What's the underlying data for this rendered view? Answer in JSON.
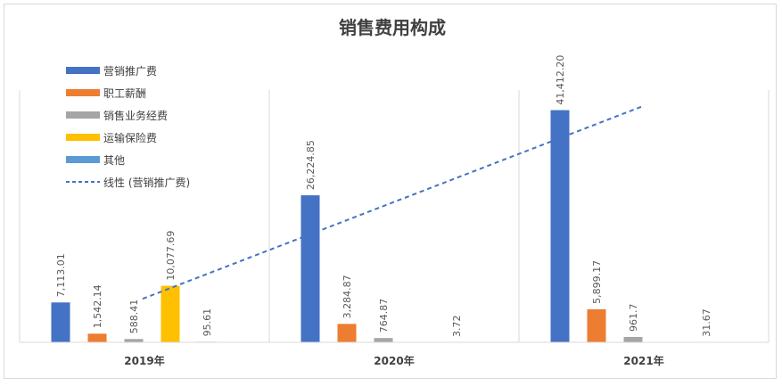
{
  "chart_data": {
    "type": "bar",
    "title": "销售费用构成",
    "categories": [
      "2019年",
      "2020年",
      "2021年"
    ],
    "series": [
      {
        "name": "营销推广费",
        "values": [
          7113.01,
          26224.85,
          41412.2
        ],
        "labels": [
          "7,113.01",
          "26,224.85",
          "41,412.20"
        ],
        "color": "#4472c4"
      },
      {
        "name": "职工薪酬",
        "values": [
          1542.14,
          3284.87,
          5899.17
        ],
        "labels": [
          "1,542.14",
          "3,284.87",
          "5,899.17"
        ],
        "color": "#ed7d31"
      },
      {
        "name": "销售业务经费",
        "values": [
          588.41,
          764.87,
          961.7
        ],
        "labels": [
          "588.41",
          "764.87",
          "961.7"
        ],
        "color": "#a5a5a5"
      },
      {
        "name": "运输保险费",
        "values": [
          10077.69,
          null,
          null
        ],
        "labels": [
          "10,077.69",
          "",
          ""
        ],
        "color": "#ffc000"
      },
      {
        "name": "其他",
        "values": [
          95.61,
          3.72,
          31.67
        ],
        "labels": [
          "95.61",
          "3.72",
          "31.67"
        ],
        "color": "#5b9bd5"
      }
    ],
    "trendline": {
      "name": "线性 (营销推广费)",
      "of_series": "营销推广费",
      "color": "#4472c4",
      "style": "dashed"
    },
    "ylim": [
      0,
      45000
    ],
    "axes_visible": false,
    "legend_position": "top-left",
    "grid": "vertical category separators"
  }
}
